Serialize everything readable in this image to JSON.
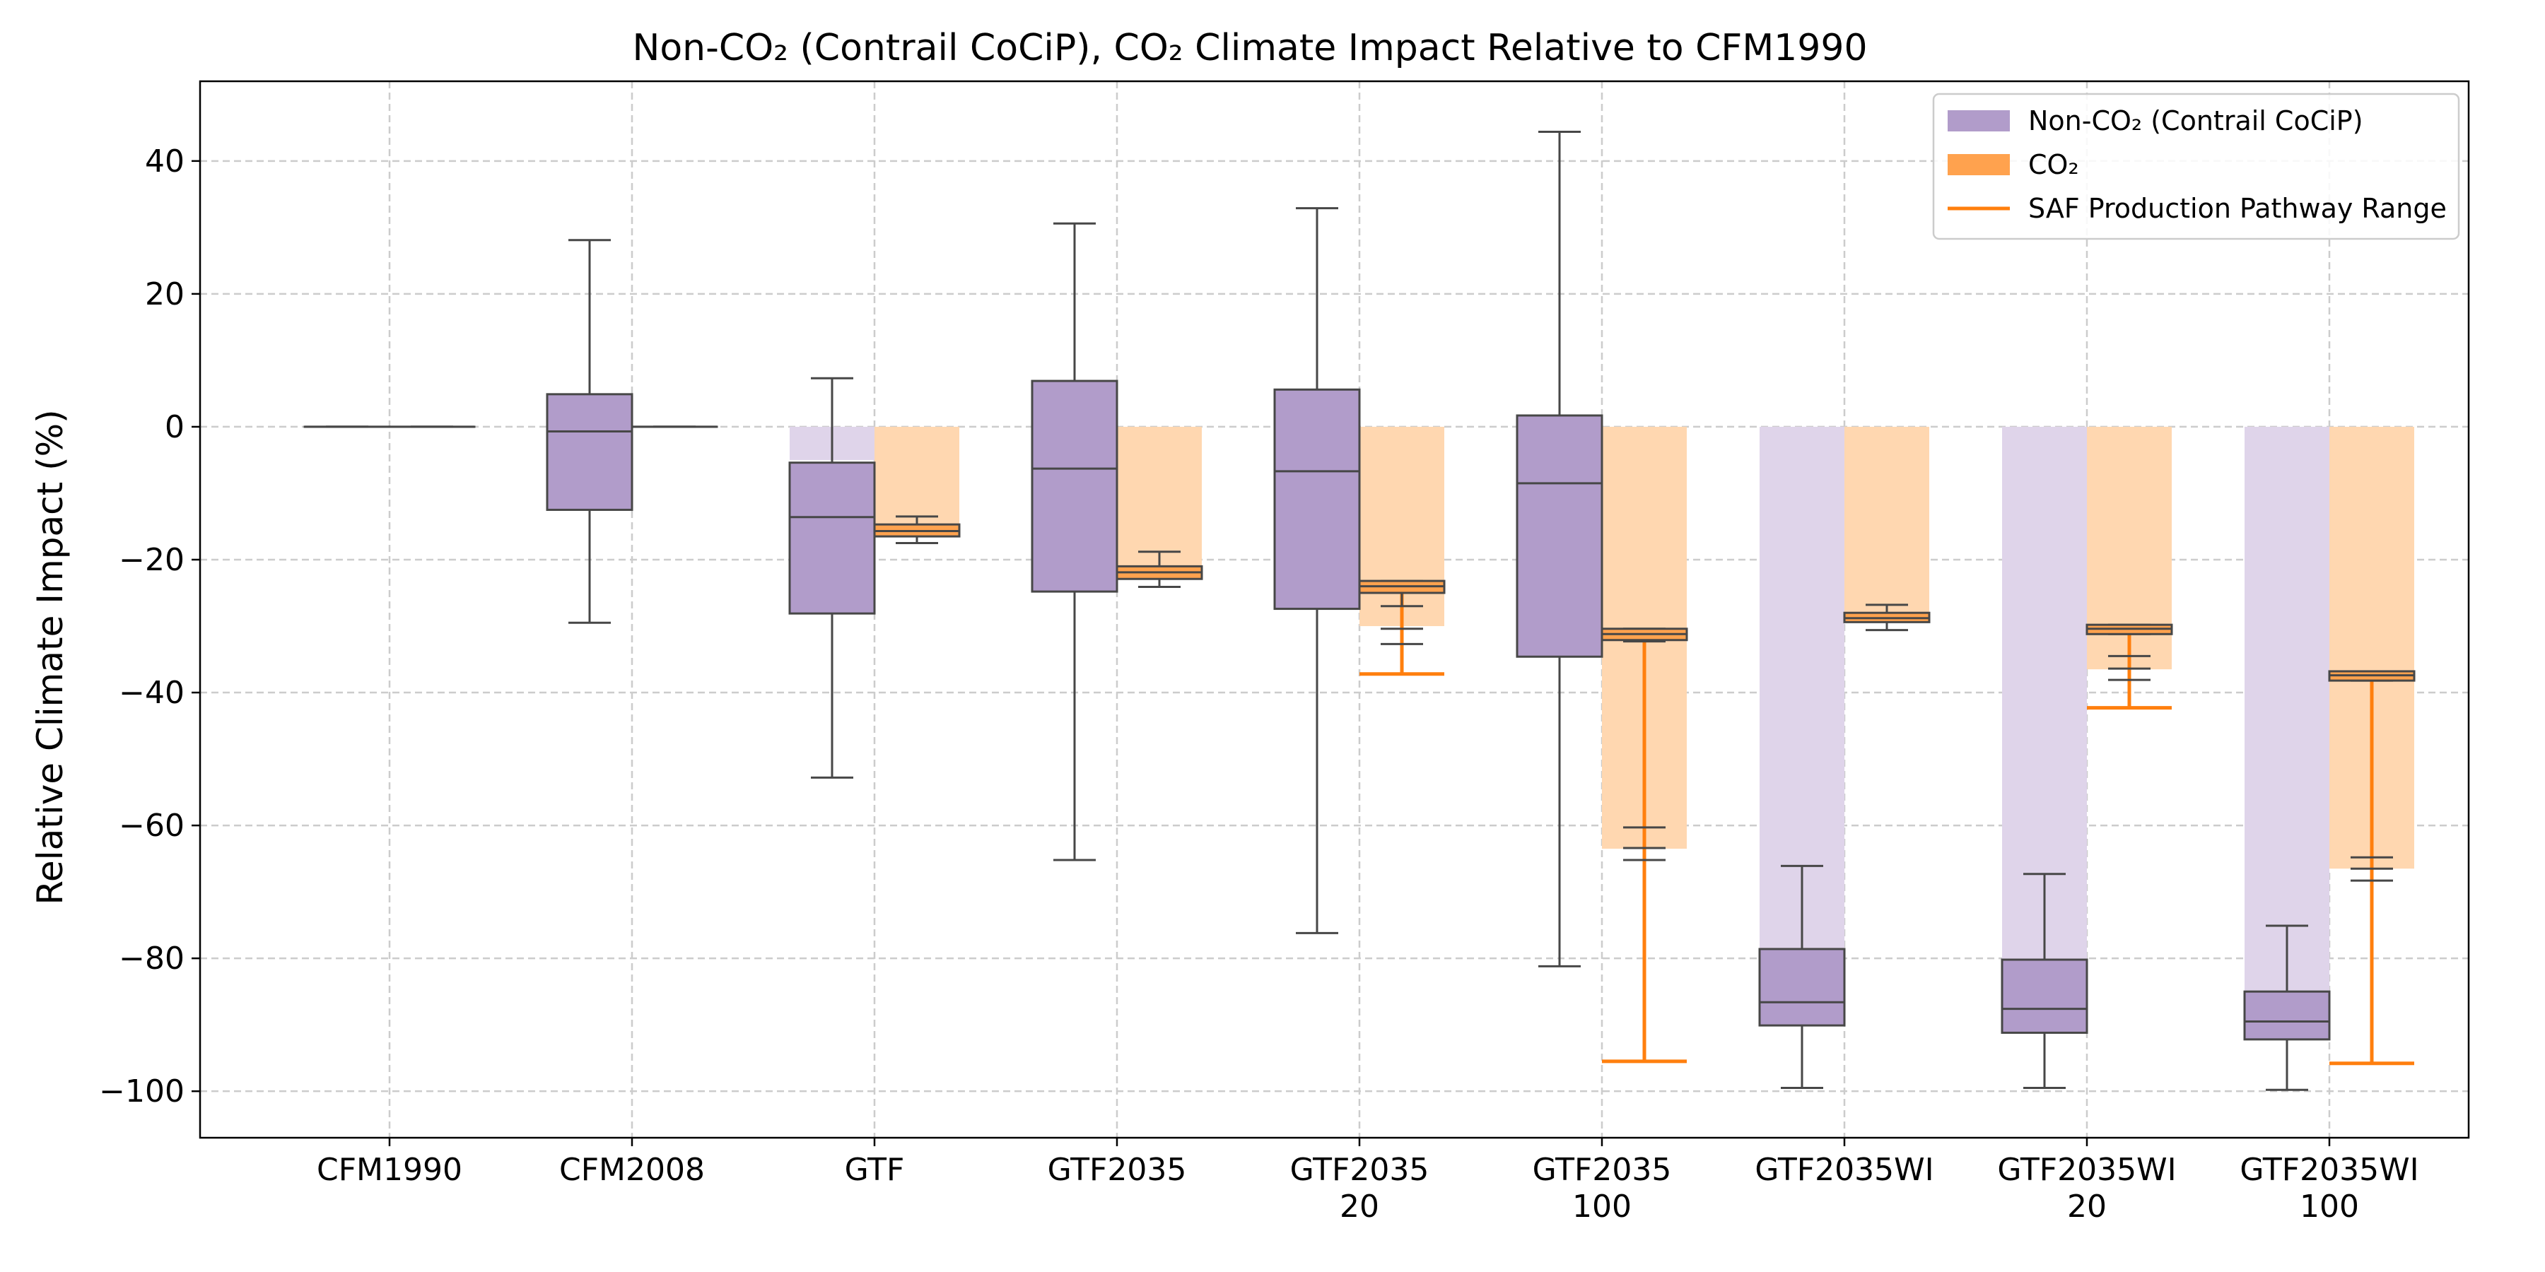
{
  "chart_data": {
    "type": "box",
    "title": "Non-CO₂ (Contrail CoCiP), CO₂ Climate Impact Relative to CFM1990",
    "xlabel": "",
    "ylabel": "Relative Climate Impact (%)",
    "ylim": [
      -107,
      52
    ],
    "yticks": [
      40,
      20,
      0,
      -20,
      -40,
      -60,
      -80,
      -100
    ],
    "ytick_labels": [
      "40",
      "20",
      "0",
      "−20",
      "−40",
      "−60",
      "−80",
      "−100"
    ],
    "grid": true,
    "legend_position": "top-right",
    "colors": {
      "non_co2_box": "#b19cca",
      "non_co2_bar": "#dfd4ea",
      "co2_box": "#ffa24e",
      "co2_bar": "#ffd7b0",
      "saf_range": "#ff7f0e",
      "box_edge": "#474747",
      "grid": "#cccccc"
    },
    "legend": [
      {
        "label": "Non-CO₂ (Contrail CoCiP)",
        "kind": "patch",
        "color": "#b19cca"
      },
      {
        "label": "CO₂",
        "kind": "patch",
        "color": "#ffa24e"
      },
      {
        "label": "SAF Production Pathway Range",
        "kind": "line",
        "color": "#ff7f0e"
      }
    ],
    "categories": [
      {
        "label": [
          "CFM1990"
        ],
        "non_co2_bar": null,
        "co2_bar": null,
        "non_co2_box": {
          "whislo": 0,
          "q1": 0,
          "med": 0,
          "q3": 0,
          "whishi": 0
        },
        "co2_box": {
          "whislo": 0,
          "q1": 0,
          "med": 0,
          "q3": 0,
          "whishi": 0
        },
        "saf_range": null
      },
      {
        "label": [
          "CFM2008"
        ],
        "non_co2_bar": null,
        "co2_bar": null,
        "non_co2_box": {
          "whislo": -29.5,
          "q1": -12.5,
          "med": -0.7,
          "q3": 4.9,
          "whishi": 28.1
        },
        "co2_box": {
          "whislo": 0,
          "q1": 0,
          "med": 0,
          "q3": 0,
          "whishi": 0
        },
        "saf_range": null
      },
      {
        "label": [
          "GTF"
        ],
        "non_co2_bar": -5,
        "co2_bar": -15,
        "non_co2_box": {
          "whislo": -52.8,
          "q1": -28.1,
          "med": -13.6,
          "q3": -5.4,
          "whishi": 7.3
        },
        "co2_box": {
          "whislo": -17.5,
          "q1": -16.5,
          "med": -15.7,
          "q3": -14.7,
          "whishi": -13.5
        },
        "saf_range": null
      },
      {
        "label": [
          "GTF2035"
        ],
        "non_co2_bar": null,
        "co2_bar": -21.5,
        "non_co2_box": {
          "whislo": -65.2,
          "q1": -24.8,
          "med": -6.3,
          "q3": 6.9,
          "whishi": 30.6
        },
        "co2_box": {
          "whislo": -24.1,
          "q1": -22.9,
          "med": -21.9,
          "q3": -21.0,
          "whishi": -18.8
        },
        "saf_range": null
      },
      {
        "label": [
          "GTF2035",
          "20"
        ],
        "non_co2_bar": null,
        "co2_bar": -30,
        "non_co2_box": {
          "whislo": -76.2,
          "q1": -27.4,
          "med": -6.7,
          "q3": 5.6,
          "whishi": 32.9
        },
        "co2_box": {
          "whislo": -27.0,
          "q1": -25.0,
          "med": -24.0,
          "q3": -23.2,
          "whishi": -23.2
        },
        "saf_range": {
          "low": -37.2,
          "high": -24.0
        }
      },
      {
        "label": [
          "GTF2035",
          "100"
        ],
        "non_co2_bar": null,
        "co2_bar": -63.5,
        "non_co2_box": {
          "whislo": -81.2,
          "q1": -34.6,
          "med": -8.5,
          "q3": 1.7,
          "whishi": 44.4
        },
        "co2_box": {
          "whislo": -32.3,
          "q1": -32.1,
          "med": -31.2,
          "q3": -30.4,
          "whishi": -30.4
        },
        "saf_range": {
          "low": -95.5,
          "high": -31.2
        }
      },
      {
        "label": [
          "GTF2035WI"
        ],
        "non_co2_bar": -82,
        "co2_bar": -28.5,
        "non_co2_box": {
          "whislo": -99.5,
          "q1": -90.1,
          "med": -86.6,
          "q3": -78.6,
          "whishi": -66.1
        },
        "co2_box": {
          "whislo": -30.6,
          "q1": -29.4,
          "med": -28.8,
          "q3": -28.0,
          "whishi": -26.8
        },
        "saf_range": null
      },
      {
        "label": [
          "GTF2035WI",
          "20"
        ],
        "non_co2_bar": -83,
        "co2_bar": -36.5,
        "non_co2_box": {
          "whislo": -99.5,
          "q1": -91.2,
          "med": -87.6,
          "q3": -80.2,
          "whishi": -67.3
        },
        "co2_box": {
          "whislo": -31.2,
          "q1": -31.2,
          "med": -30.4,
          "q3": -29.8,
          "whishi": -29.8
        },
        "saf_range": {
          "low": -42.3,
          "high": -30.4
        }
      },
      {
        "label": [
          "GTF2035WI",
          "100"
        ],
        "non_co2_bar": -86,
        "co2_bar": -66.5,
        "non_co2_box": {
          "whislo": -99.8,
          "q1": -92.2,
          "med": -89.5,
          "q3": -85.0,
          "whishi": -75.1
        },
        "co2_box": {
          "whislo": -38.2,
          "q1": -38.2,
          "med": -37.4,
          "q3": -36.8,
          "whishi": -36.8
        },
        "saf_range": {
          "low": -95.8,
          "high": -37.4
        }
      }
    ],
    "extra_black_ticks": [
      {
        "category": 4,
        "values": [
          -30.4,
          -32.7
        ]
      },
      {
        "category": 5,
        "values": [
          -60.3,
          -63.4,
          -65.2
        ]
      },
      {
        "category": 7,
        "values": [
          -34.5,
          -36.4,
          -38.1
        ]
      },
      {
        "category": 8,
        "values": [
          -64.8,
          -66.5,
          -68.3
        ]
      }
    ]
  }
}
